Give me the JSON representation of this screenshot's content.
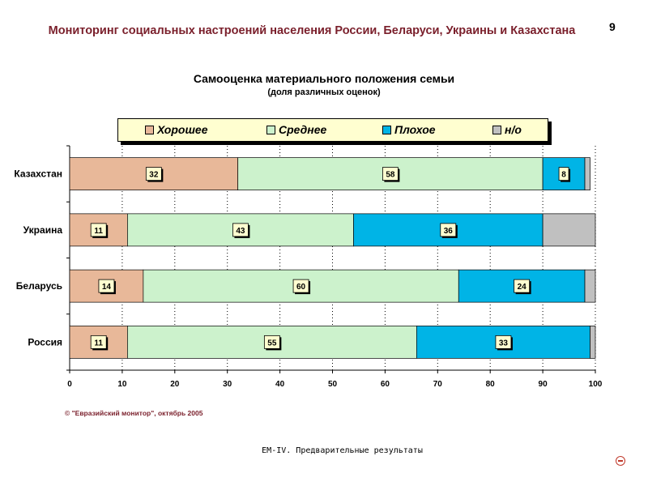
{
  "header": {
    "title": "Мониторинг социальных настроений населения России, Беларуси, Украины и Казахстана",
    "page_number": "9"
  },
  "chart_data": {
    "type": "bar",
    "orientation": "horizontal",
    "stacked": true,
    "title": "Самооценка материального положения семьи",
    "subtitle": "(доля различных оценок)",
    "categories": [
      "Казахстан",
      "Украина",
      "Беларусь",
      "Россия"
    ],
    "series": [
      {
        "name": "Хорошее",
        "color": "#e8b899",
        "values": [
          32,
          11,
          14,
          11
        ],
        "labels": [
          "32",
          "11",
          "14",
          "11"
        ]
      },
      {
        "name": "Среднее",
        "color": "#ccf2cc",
        "values": [
          58,
          43,
          60,
          55
        ],
        "labels": [
          "58",
          "43",
          "60",
          "55"
        ]
      },
      {
        "name": "Плохое",
        "color": "#00b4e6",
        "values": [
          8,
          36,
          24,
          33
        ],
        "labels": [
          "8",
          "36",
          "24",
          "33"
        ]
      },
      {
        "name": "н/о",
        "color": "#c0c0c0",
        "values": [
          1,
          10,
          2,
          1
        ],
        "labels": [
          "",
          "",
          "",
          ""
        ]
      }
    ],
    "xlim": [
      0,
      100
    ],
    "xticks": [
      "0",
      "10",
      "20",
      "30",
      "40",
      "50",
      "60",
      "70",
      "80",
      "90",
      "100"
    ],
    "grid": "vertical dotted",
    "legend_position": "top"
  },
  "footer": {
    "copyright": "© \"Евразийский монитор\", октябрь 2005",
    "note": "EM-IV. Предварительные результаты"
  },
  "icons": {
    "corner": "circle-minus-icon"
  }
}
